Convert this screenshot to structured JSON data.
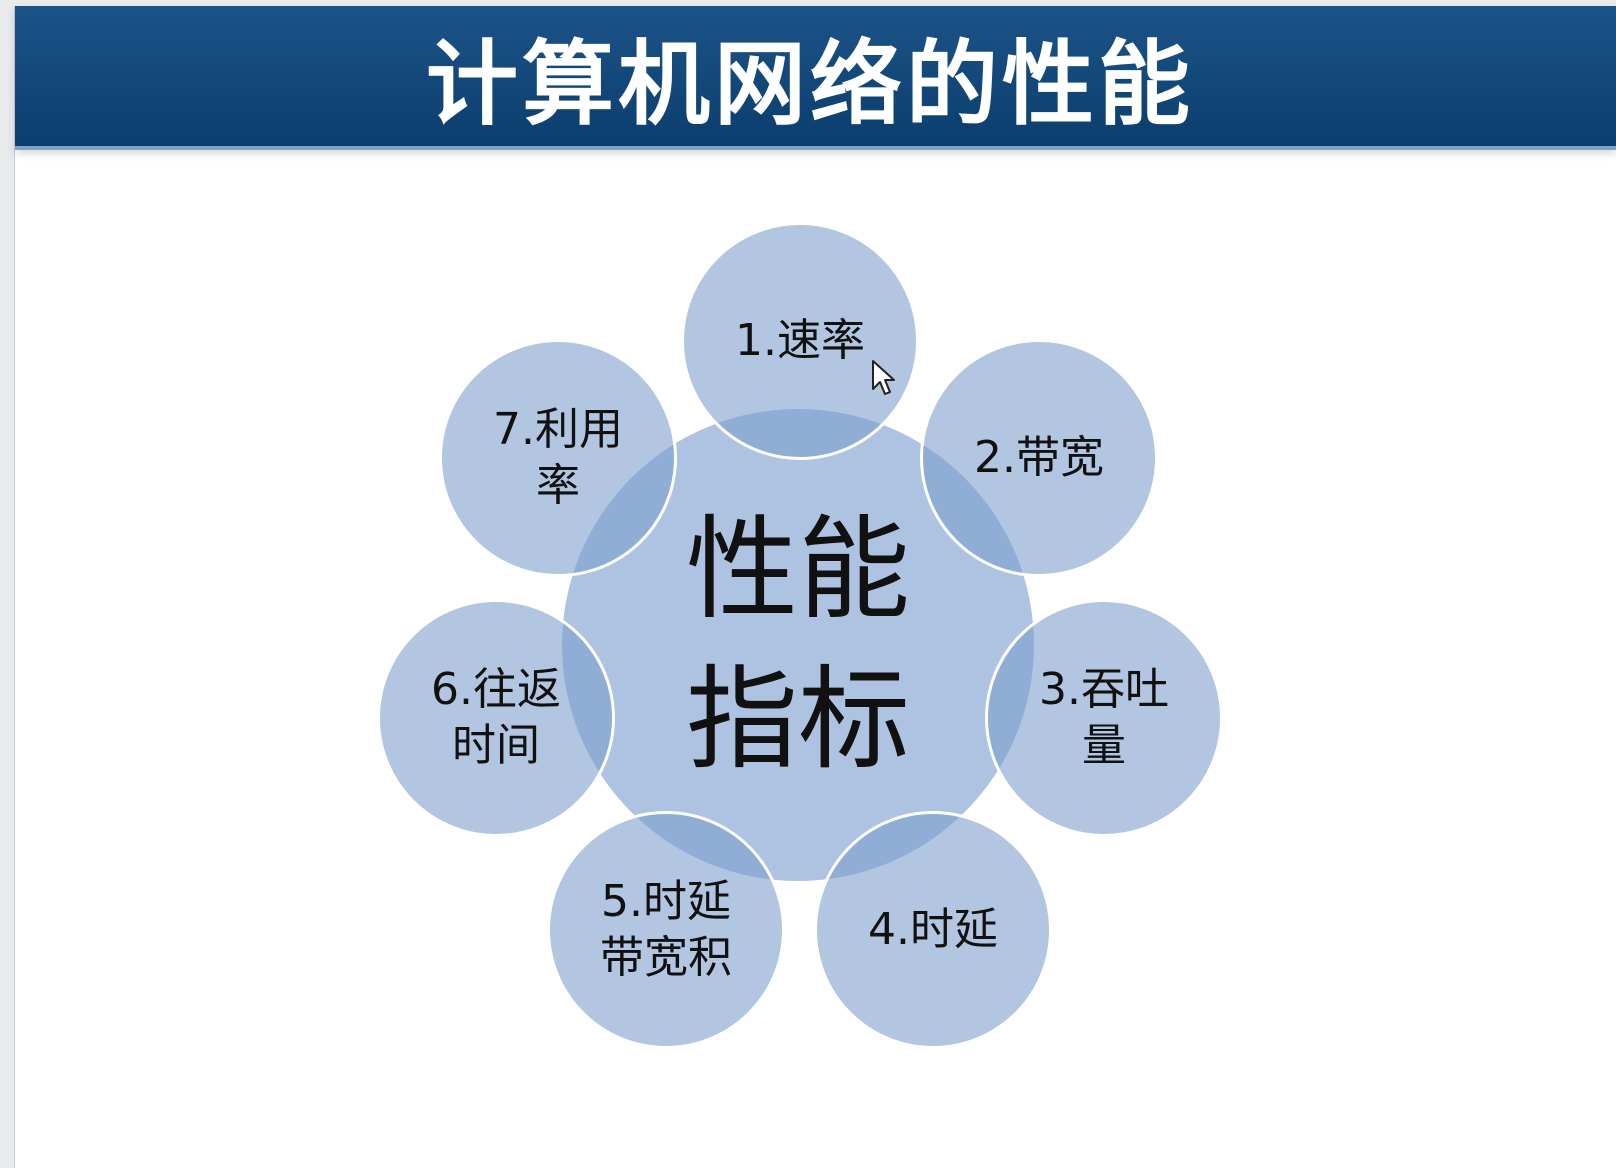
{
  "slide": {
    "title": "计算机网络的性能"
  },
  "diagram": {
    "center_label": "性能指标",
    "items": [
      {
        "label": "1.速率"
      },
      {
        "label": "2.带宽"
      },
      {
        "label": "3.吞吐量"
      },
      {
        "label": "4.时延"
      },
      {
        "label": "5.时延带宽积"
      },
      {
        "label": "6.往返时间"
      },
      {
        "label": "7.利用率"
      }
    ],
    "colors": {
      "title_bar": "#0b3e6e",
      "circle_fill": "#9db5d9",
      "text": "#111111"
    }
  },
  "pointer": {
    "icon": "mouse-cursor-icon"
  }
}
